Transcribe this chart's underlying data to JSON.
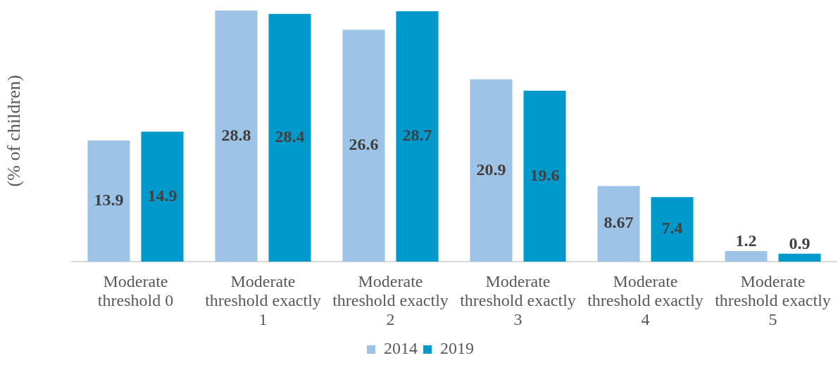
{
  "chart_data": {
    "type": "bar",
    "ylabel": "(% of children)",
    "categories": [
      "Moderate threshold 0",
      "Moderate threshold exactly 1",
      "Moderate threshold exactly 2",
      "Moderate threshold exactly 3",
      "Moderate threshold exactly 4",
      "Moderate threshold exactly 5"
    ],
    "series": [
      {
        "name": "2014",
        "color": "#9dc3e6",
        "values": [
          13.9,
          28.8,
          26.6,
          20.9,
          8.67,
          1.2
        ]
      },
      {
        "name": "2019",
        "color": "#0099cc",
        "values": [
          14.9,
          28.4,
          28.7,
          19.6,
          7.4,
          0.9
        ]
      }
    ],
    "data_labels": true,
    "legend": "bottom",
    "tick_labels": "x"
  }
}
